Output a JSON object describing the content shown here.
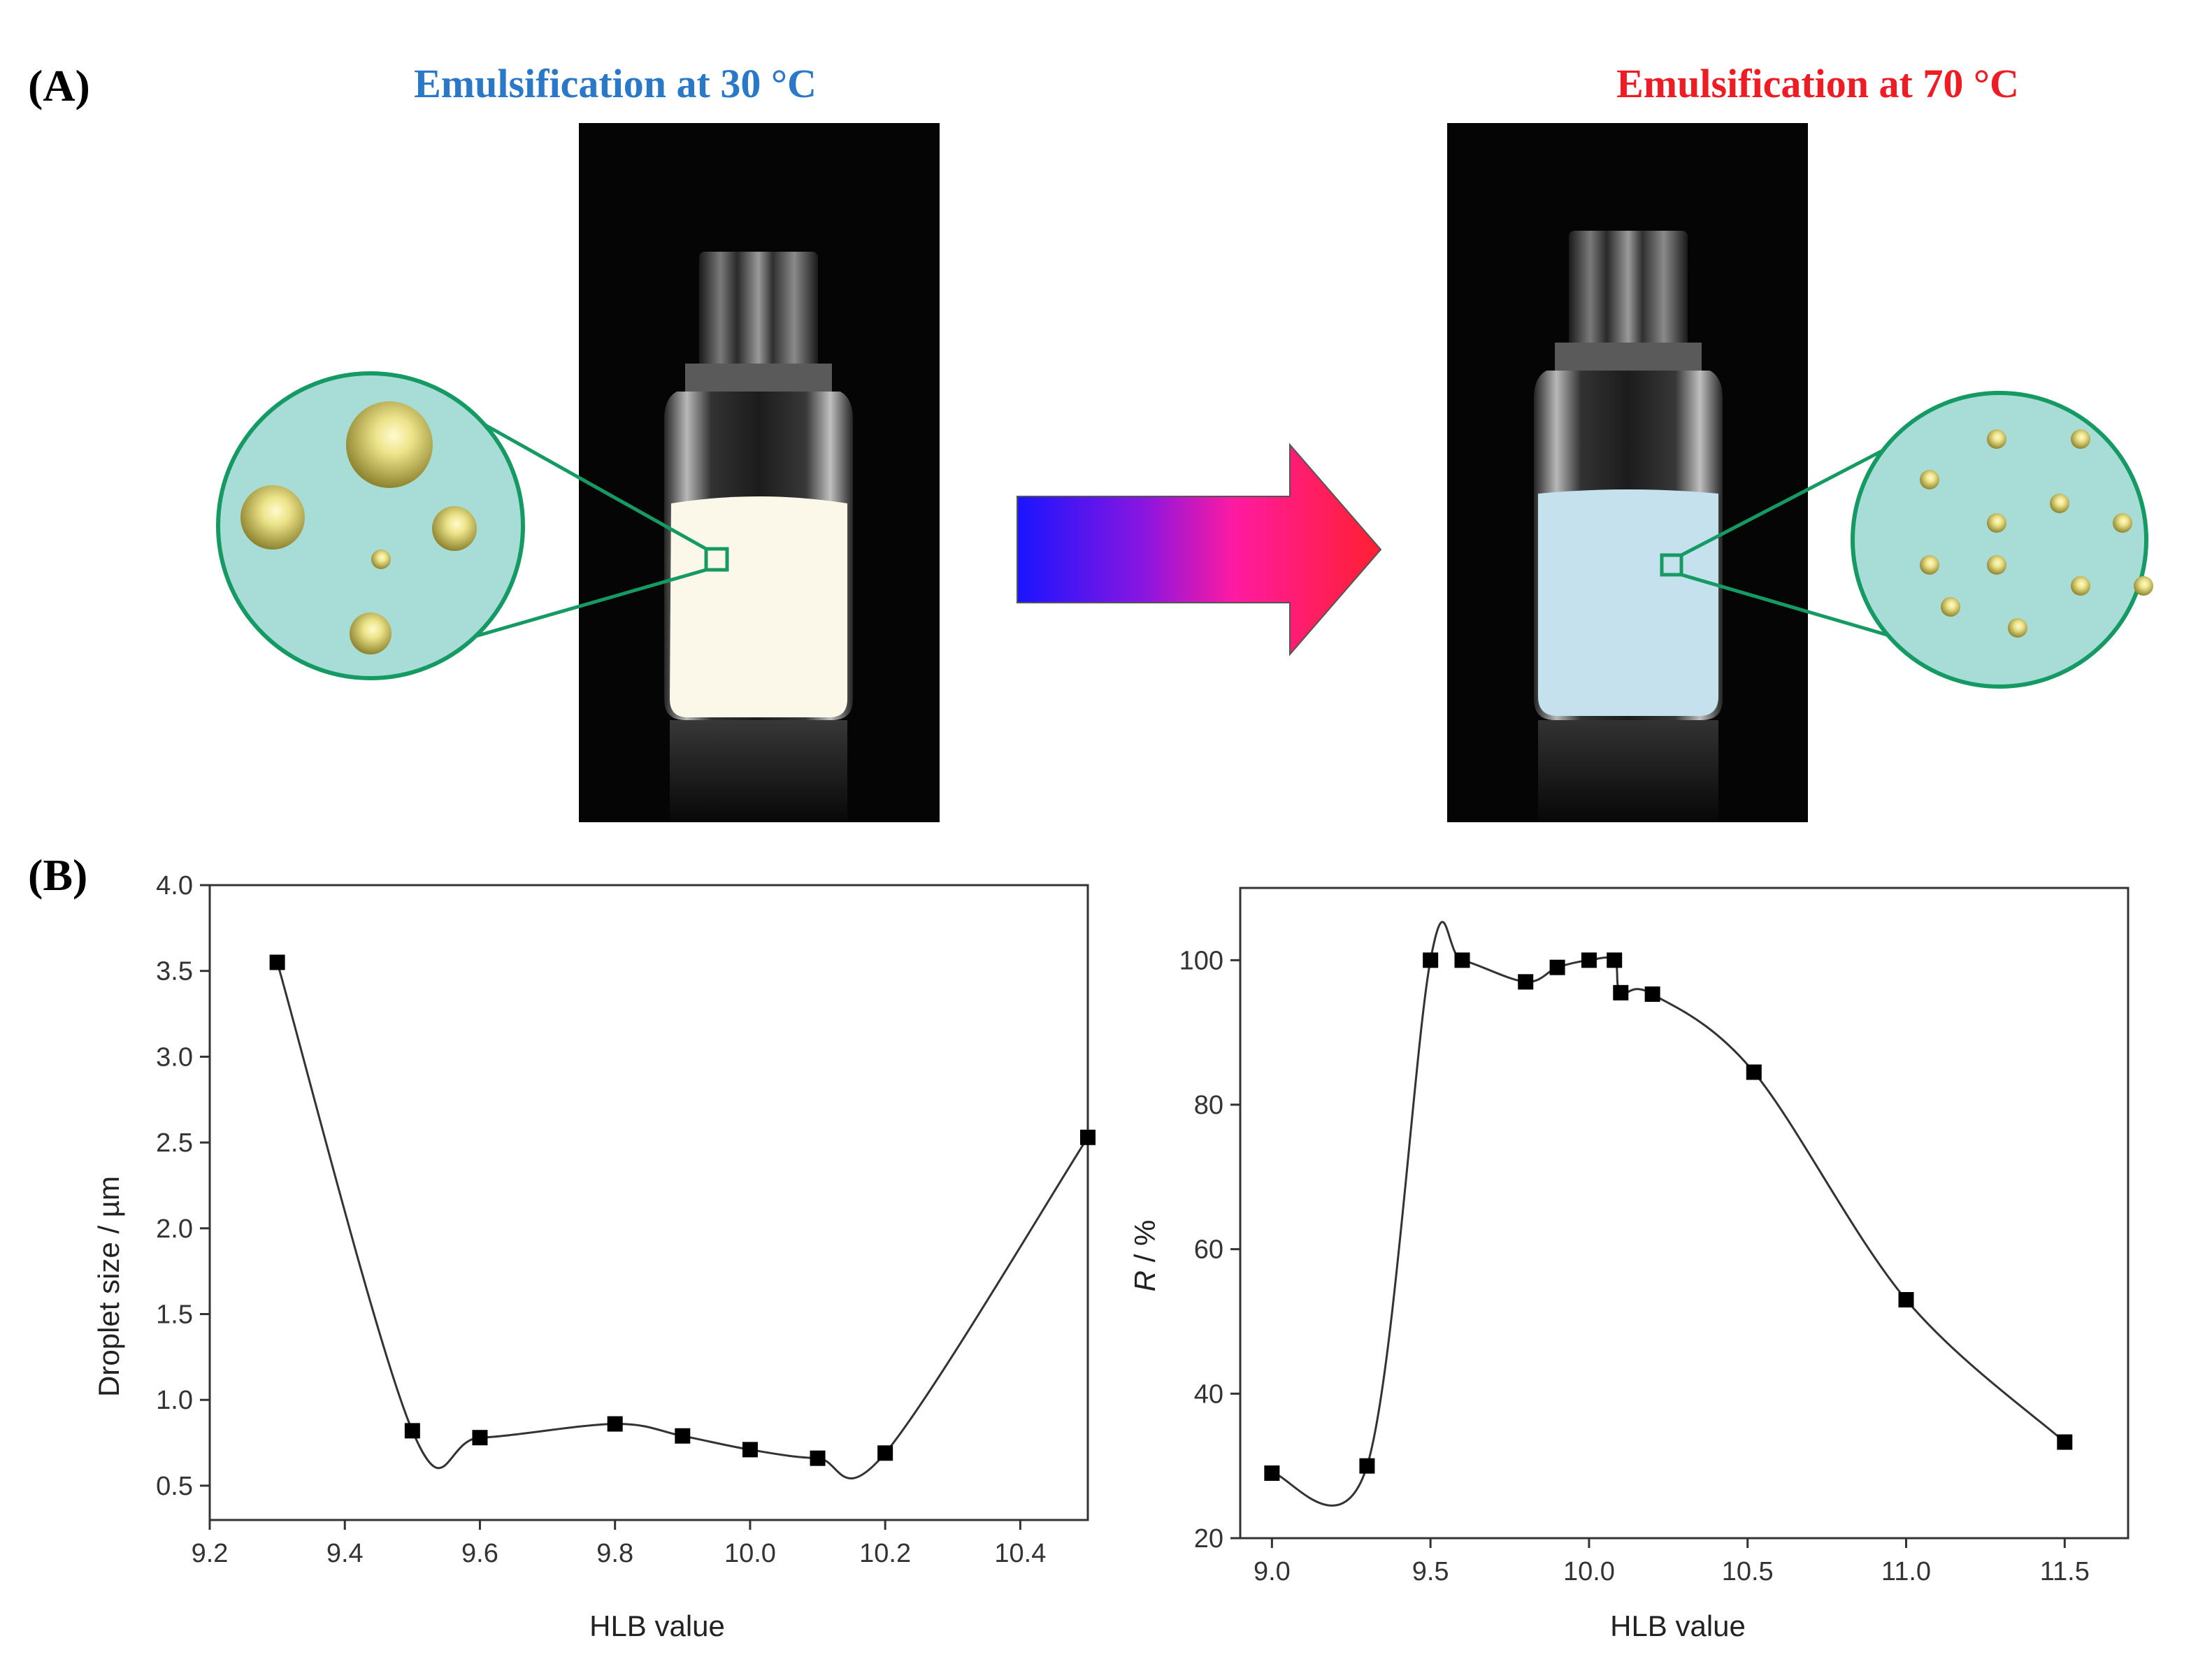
{
  "panel_a": {
    "label": "(A)",
    "left_title": "Emulsification at 30 °C",
    "right_title": "Emulsification at 70 °C",
    "left_title_color": "#2a78c8",
    "right_title_color": "#ee1c25",
    "arrow_gradient": [
      "#1a14ff",
      "#c818c0",
      "#ff1a4a",
      "#ff2020"
    ],
    "milky_emulsion_color": "#fbf8ea",
    "bluish_emulsion_color": "#c6e1ee",
    "magnifier_fill": "#a8dcd6",
    "magnifier_stroke": "#169a64"
  },
  "panel_b": {
    "label": "(B)"
  },
  "chart_data": [
    {
      "type": "scatter",
      "title": "",
      "xlabel": "HLB value",
      "ylabel": "Droplet size / µm",
      "xlim": [
        9.2,
        10.5
      ],
      "ylim": [
        0.3,
        4.0
      ],
      "xticks": [
        "9.2",
        "9.4",
        "9.6",
        "9.8",
        "10.0",
        "10.2",
        "10.4"
      ],
      "yticks": [
        "0.5",
        "1.0",
        "1.5",
        "2.0",
        "2.5",
        "3.0",
        "3.5",
        "4.0"
      ],
      "grid": false,
      "marker": "square",
      "smooth_curve": true,
      "points": [
        {
          "x": 9.3,
          "y": 3.55
        },
        {
          "x": 9.5,
          "y": 0.82
        },
        {
          "x": 9.6,
          "y": 0.78
        },
        {
          "x": 9.8,
          "y": 0.86
        },
        {
          "x": 9.9,
          "y": 0.79
        },
        {
          "x": 10.0,
          "y": 0.71
        },
        {
          "x": 10.1,
          "y": 0.66
        },
        {
          "x": 10.2,
          "y": 0.69
        },
        {
          "x": 10.5,
          "y": 2.53
        }
      ]
    },
    {
      "type": "scatter",
      "title": "",
      "xlabel": "HLB value",
      "ylabel_italic": "R",
      "ylabel_rest": " / %",
      "xlim": [
        8.9,
        11.7
      ],
      "ylim": [
        20,
        110
      ],
      "xticks": [
        "9.0",
        "9.5",
        "10.0",
        "10.5",
        "11.0",
        "11.5"
      ],
      "yticks": [
        "20",
        "40",
        "60",
        "80",
        "100"
      ],
      "grid": false,
      "marker": "square",
      "smooth_curve": true,
      "points": [
        {
          "x": 9.0,
          "y": 29
        },
        {
          "x": 9.3,
          "y": 30
        },
        {
          "x": 9.5,
          "y": 100
        },
        {
          "x": 9.6,
          "y": 100
        },
        {
          "x": 9.8,
          "y": 97
        },
        {
          "x": 9.9,
          "y": 99
        },
        {
          "x": 10.0,
          "y": 100
        },
        {
          "x": 10.08,
          "y": 100
        },
        {
          "x": 10.1,
          "y": 95.5
        },
        {
          "x": 10.2,
          "y": 95.3
        },
        {
          "x": 10.52,
          "y": 84.5
        },
        {
          "x": 11.0,
          "y": 53
        },
        {
          "x": 11.5,
          "y": 33.3
        }
      ]
    }
  ]
}
